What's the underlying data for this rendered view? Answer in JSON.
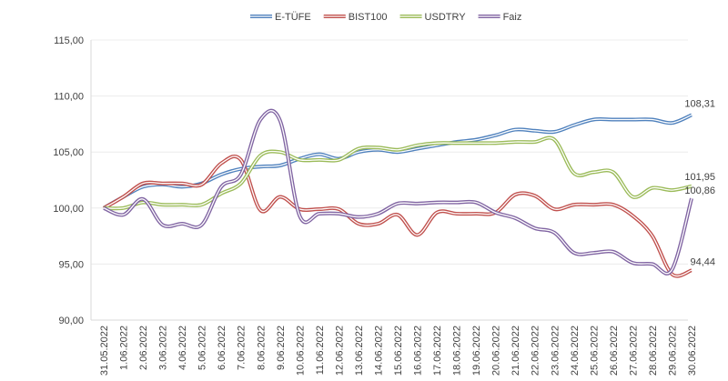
{
  "chart_data": {
    "type": "line",
    "smooth": true,
    "ylim": [
      90,
      115
    ],
    "yticks": [
      "90,00",
      "95,00",
      "100,00",
      "105,00",
      "110,00",
      "115,00"
    ],
    "ytick_values": [
      90,
      95,
      100,
      105,
      110,
      115
    ],
    "grid": true,
    "legend_position": "top",
    "categories": [
      "31.05.2022",
      "1.06.2022",
      "2.06.2022",
      "3.06.2022",
      "4.06.2022",
      "5.06.2022",
      "6.06.2022",
      "7.06.2022",
      "8.06.2022",
      "9.06.2022",
      "10.06.2022",
      "11.06.2022",
      "12.06.2022",
      "13.06.2022",
      "14.06.2022",
      "15.06.2022",
      "16.06.2022",
      "17.06.2022",
      "18.06.2022",
      "19.06.2022",
      "20.06.2022",
      "21.06.2022",
      "22.06.2022",
      "23.06.2022",
      "24.06.2022",
      "25.06.2022",
      "26.06.2022",
      "27.06.2022",
      "28.06.2022",
      "29.06.2022",
      "30.06.2022"
    ],
    "series": [
      {
        "name": "E-TÜFE",
        "color": "#4f81bd",
        "end_label": "108,31",
        "values": [
          100,
          101,
          101.9,
          102.1,
          101.9,
          102.2,
          103,
          103.5,
          103.7,
          103.8,
          104.4,
          104.8,
          104.4,
          105,
          105.2,
          105,
          105.3,
          105.6,
          105.9,
          106.1,
          106.5,
          107,
          106.9,
          106.8,
          107.4,
          107.9,
          107.9,
          107.9,
          107.9,
          107.6,
          108.31
        ]
      },
      {
        "name": "BIST100",
        "color": "#c0504d",
        "end_label": "94,44",
        "values": [
          100,
          101,
          102.2,
          102.2,
          102.2,
          102.1,
          104,
          104.3,
          99.8,
          101,
          99.9,
          99.9,
          99.9,
          98.6,
          98.6,
          99.4,
          97.6,
          99.6,
          99.5,
          99.5,
          99.6,
          101.2,
          101.1,
          99.9,
          100.3,
          100.3,
          100.3,
          99.3,
          97.5,
          94.1,
          94.44
        ]
      },
      {
        "name": "USDTRY",
        "color": "#9bbb59",
        "end_label": "101,95",
        "values": [
          100,
          100,
          100.5,
          100.3,
          100.3,
          100.3,
          101.3,
          102.2,
          104.7,
          105,
          104.3,
          104.3,
          104.3,
          105.3,
          105.4,
          105.2,
          105.6,
          105.8,
          105.8,
          105.8,
          105.8,
          105.9,
          105.9,
          106.1,
          103.1,
          103.2,
          103.2,
          101,
          101.8,
          101.6,
          101.95
        ]
      },
      {
        "name": "Faiz",
        "color": "#8064a2",
        "end_label": "100,86",
        "values": [
          100,
          99.4,
          100.8,
          98.5,
          98.6,
          98.5,
          101.9,
          103,
          107.9,
          107.8,
          99.3,
          99.5,
          99.5,
          99.2,
          99.5,
          100.4,
          100.4,
          100.5,
          100.5,
          100.5,
          99.6,
          99.1,
          98.2,
          97.8,
          96,
          96,
          96.1,
          95.1,
          95,
          94.5,
          100.86
        ]
      }
    ]
  }
}
